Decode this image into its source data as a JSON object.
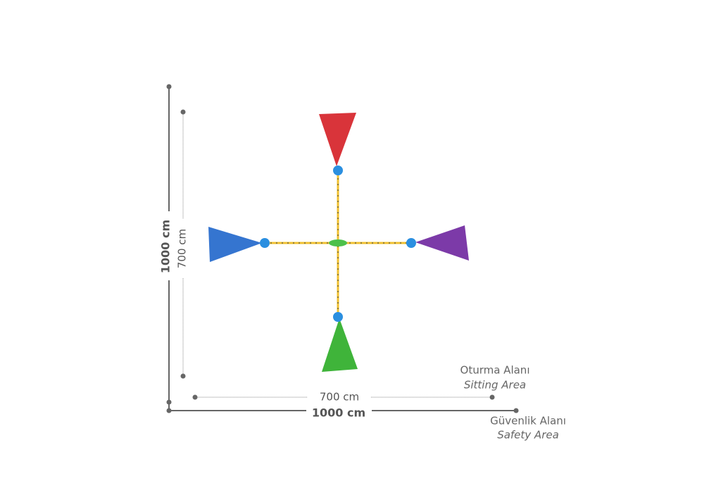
{
  "dimensions": {
    "outer_height": "1000 cm",
    "inner_height": "700 cm",
    "inner_width": "700 cm",
    "outer_width": "1000 cm"
  },
  "legend": {
    "sitting": {
      "label": "Oturma Alanı",
      "label_en": "Sitting Area"
    },
    "safety": {
      "label": "Güvenlik Alanı",
      "label_en": "Safety Area"
    }
  }
}
